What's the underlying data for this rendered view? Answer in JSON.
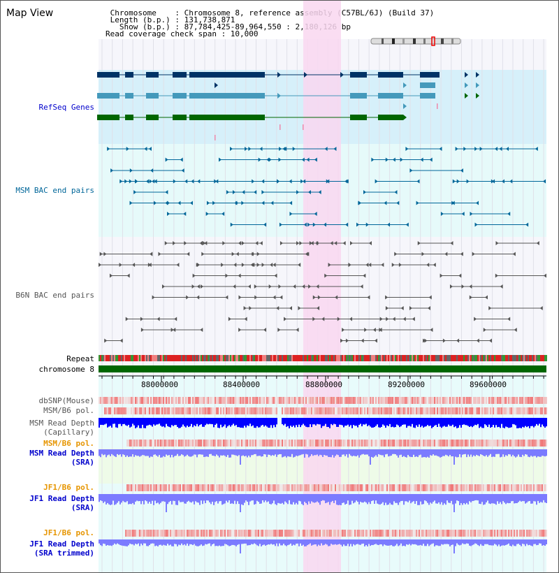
{
  "header": {
    "title": "Map View",
    "info_lines": [
      " Chromosome    : Chromosome 8, reference assembly (C57BL/6J) (Build 37)",
      " Length (b.p.) : 131,738,871",
      "   Show (b.p.) : 87,784,425-89,964,550 : 2,180,126 bp",
      "Read coverage check span : 10,000"
    ]
  },
  "tracks": {
    "refseq": {
      "label": "RefSeq Genes",
      "color": "#0000cc"
    },
    "msm_bac": {
      "label": "MSM BAC end pairs",
      "color": "#006699"
    },
    "b6n_bac": {
      "label": "B6N BAC end pairs",
      "color": "#555555"
    },
    "repeat": {
      "label": "Repeat"
    },
    "chromosome": {
      "label": "chromosome 8"
    },
    "dbsnp": {
      "label": "dbSNP(Mouse)"
    },
    "msm_b6_pol": {
      "label": "MSM/B6 pol."
    },
    "msm_depth_cap": {
      "label": "MSM Read Depth",
      "label2": "(Capillary)"
    },
    "msm_b6_pol_sra": {
      "label": "MSM/B6 pol.",
      "color": "#e69500"
    },
    "msm_depth_sra": {
      "label": "MSM Read Depth",
      "label2": "(SRA)",
      "color": "#0000cc"
    },
    "jf1_b6_pol": {
      "label": "JF1/B6 pol.",
      "color": "#e69500"
    },
    "jf1_depth_sra": {
      "label": "JF1 Read Depth",
      "label2": "(SRA)",
      "color": "#0000cc"
    },
    "jf1_b6_pol_trim": {
      "label": "JF1/B6 pol.",
      "color": "#e69500"
    },
    "jf1_depth_trim": {
      "label": "JF1 Read Depth",
      "label2": "(SRA trimmed)",
      "color": "#0000cc"
    }
  },
  "axis": {
    "ticks": [
      "88000000",
      "88400000",
      "88800000",
      "89200000",
      "89600000"
    ]
  },
  "colors": {
    "highlight": "#f9d7f0",
    "refseq_bg": "#d6f0fa",
    "msm_bg": "#e6fafa",
    "grid": "#e0e0e8",
    "gene_dark": "#003366",
    "gene_mid": "#4499bb",
    "gene_green": "#006600",
    "depth_blue": "#0000ff",
    "depth_sra": "#7b7bff",
    "chrom_green": "#006600"
  }
}
